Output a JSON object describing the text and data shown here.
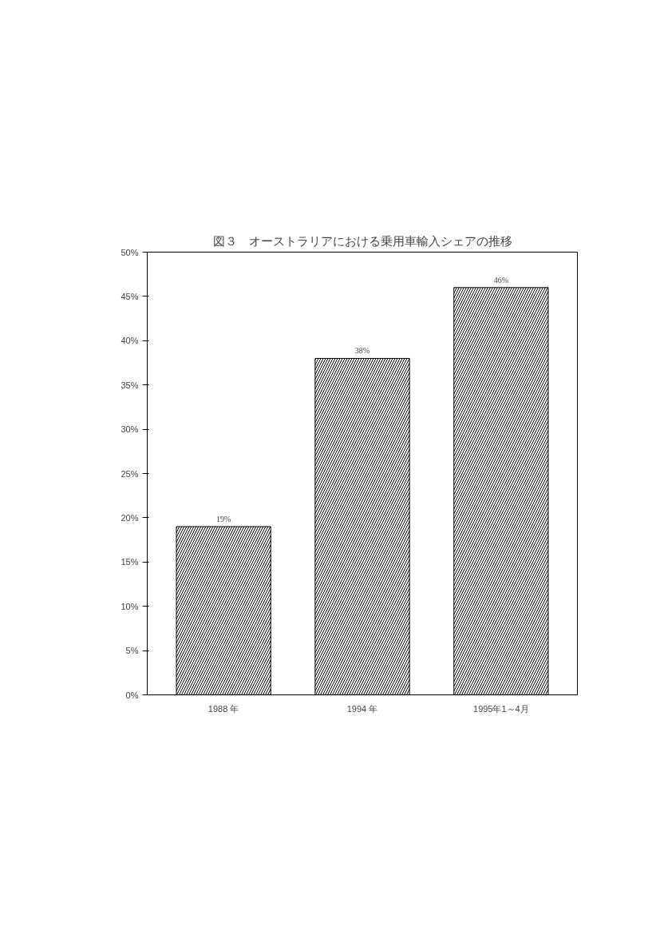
{
  "chart_data": {
    "type": "bar",
    "title": "図３　オーストラリアにおける乗用車輸入シェアの推移",
    "categories": [
      "1988 年",
      "1994 年",
      "1995年1～4月"
    ],
    "values": [
      19,
      38,
      46
    ],
    "color": "#000000",
    "data_labels": true,
    "value_labels": [
      "19%",
      "38%",
      "46%"
    ],
    "ylim": [
      0,
      50
    ],
    "yticks": [
      {
        "value": 0,
        "label": "0%"
      },
      {
        "value": 5,
        "label": "5%"
      },
      {
        "value": 10,
        "label": "10%"
      },
      {
        "value": 15,
        "label": "15%"
      },
      {
        "value": 20,
        "label": "20%"
      },
      {
        "value": 25,
        "label": "25%"
      },
      {
        "value": 30,
        "label": "30%"
      },
      {
        "value": 35,
        "label": "35%"
      },
      {
        "value": 40,
        "label": "40%"
      },
      {
        "value": 45,
        "label": "45%"
      },
      {
        "value": 50,
        "label": "50%"
      }
    ],
    "grid": false
  }
}
